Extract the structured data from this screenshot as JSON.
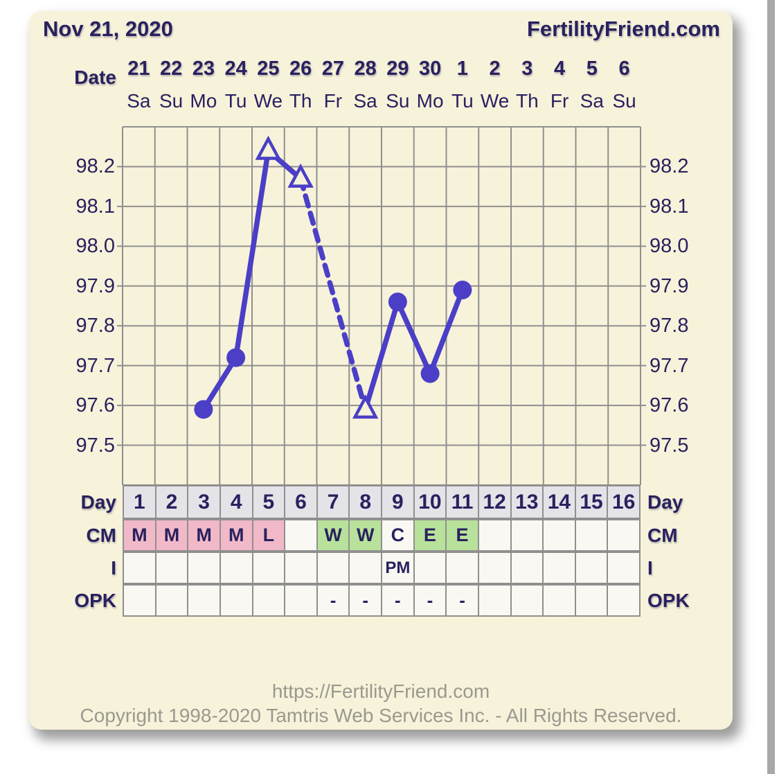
{
  "header": {
    "date_title": "Nov 21, 2020",
    "brand": "FertilityFriend.com"
  },
  "chart_data": {
    "type": "line",
    "x_axis": {
      "label": "Date",
      "dates": [
        "21",
        "22",
        "23",
        "24",
        "25",
        "26",
        "27",
        "28",
        "29",
        "30",
        "1",
        "2",
        "3",
        "4",
        "5",
        "6"
      ],
      "weekdays": [
        "Sa",
        "Su",
        "Mo",
        "Tu",
        "We",
        "Th",
        "Fr",
        "Sa",
        "Su",
        "Mo",
        "Tu",
        "We",
        "Th",
        "Fr",
        "Sa",
        "Su"
      ],
      "cycle_days": [
        1,
        2,
        3,
        4,
        5,
        6,
        7,
        8,
        9,
        10,
        11,
        12,
        13,
        14,
        15,
        16
      ]
    },
    "y_axis": {
      "tick_labels": [
        "98.2",
        "98.1",
        "98.0",
        "97.9",
        "97.8",
        "97.7",
        "97.6",
        "97.5"
      ],
      "lim": [
        97.4,
        98.3
      ],
      "gridline_step": 0.1,
      "labels_on_both_sides": true
    },
    "grid": true,
    "series": [
      {
        "name": "bbt-temperature",
        "color": "#4a3fc6",
        "points": [
          {
            "cycle_day": 3,
            "temp": 97.59,
            "marker": "circle"
          },
          {
            "cycle_day": 4,
            "temp": 97.72,
            "marker": "circle"
          },
          {
            "cycle_day": 5,
            "temp": 98.24,
            "marker": "triangle-open"
          },
          {
            "cycle_day": 6,
            "temp": 98.17,
            "marker": "triangle-open"
          },
          {
            "cycle_day": 8,
            "temp": 97.59,
            "marker": "triangle-open"
          },
          {
            "cycle_day": 9,
            "temp": 97.86,
            "marker": "circle"
          },
          {
            "cycle_day": 10,
            "temp": 97.68,
            "marker": "circle"
          },
          {
            "cycle_day": 11,
            "temp": 97.89,
            "marker": "circle"
          }
        ],
        "segment_rule": "dashed when cycle days are not consecutive (missing day 7)"
      }
    ]
  },
  "table": {
    "rows": [
      {
        "id": "day",
        "label": "Day",
        "cells": [
          {
            "text": "1",
            "bg": "day"
          },
          {
            "text": "2",
            "bg": "day"
          },
          {
            "text": "3",
            "bg": "day"
          },
          {
            "text": "4",
            "bg": "day"
          },
          {
            "text": "5",
            "bg": "day"
          },
          {
            "text": "6",
            "bg": "day"
          },
          {
            "text": "7",
            "bg": "day"
          },
          {
            "text": "8",
            "bg": "day"
          },
          {
            "text": "9",
            "bg": "day"
          },
          {
            "text": "10",
            "bg": "day"
          },
          {
            "text": "11",
            "bg": "day"
          },
          {
            "text": "12",
            "bg": "day"
          },
          {
            "text": "13",
            "bg": "day"
          },
          {
            "text": "14",
            "bg": "day"
          },
          {
            "text": "15",
            "bg": "day"
          },
          {
            "text": "16",
            "bg": "day"
          }
        ]
      },
      {
        "id": "cm",
        "label": "CM",
        "cells": [
          {
            "text": "M",
            "bg": "pink"
          },
          {
            "text": "M",
            "bg": "pink"
          },
          {
            "text": "M",
            "bg": "pink"
          },
          {
            "text": "M",
            "bg": "pink"
          },
          {
            "text": "L",
            "bg": "pink"
          },
          {
            "text": "",
            "bg": "plain"
          },
          {
            "text": "W",
            "bg": "green"
          },
          {
            "text": "W",
            "bg": "green"
          },
          {
            "text": "C",
            "bg": "plain"
          },
          {
            "text": "E",
            "bg": "green"
          },
          {
            "text": "E",
            "bg": "green"
          },
          {
            "text": "",
            "bg": "plain"
          },
          {
            "text": "",
            "bg": "plain"
          },
          {
            "text": "",
            "bg": "plain"
          },
          {
            "text": "",
            "bg": "plain"
          },
          {
            "text": "",
            "bg": "plain"
          }
        ]
      },
      {
        "id": "i",
        "label": "I",
        "cells": [
          {
            "text": "",
            "bg": "plain"
          },
          {
            "text": "",
            "bg": "plain"
          },
          {
            "text": "",
            "bg": "plain"
          },
          {
            "text": "",
            "bg": "plain"
          },
          {
            "text": "",
            "bg": "plain"
          },
          {
            "text": "",
            "bg": "plain"
          },
          {
            "text": "",
            "bg": "plain"
          },
          {
            "text": "",
            "bg": "plain"
          },
          {
            "text": "PM",
            "bg": "plain"
          },
          {
            "text": "",
            "bg": "plain"
          },
          {
            "text": "",
            "bg": "plain"
          },
          {
            "text": "",
            "bg": "plain"
          },
          {
            "text": "",
            "bg": "plain"
          },
          {
            "text": "",
            "bg": "plain"
          },
          {
            "text": "",
            "bg": "plain"
          },
          {
            "text": "",
            "bg": "plain"
          }
        ]
      },
      {
        "id": "opk",
        "label": "OPK",
        "cells": [
          {
            "text": "",
            "bg": "plain"
          },
          {
            "text": "",
            "bg": "plain"
          },
          {
            "text": "",
            "bg": "plain"
          },
          {
            "text": "",
            "bg": "plain"
          },
          {
            "text": "",
            "bg": "plain"
          },
          {
            "text": "",
            "bg": "plain"
          },
          {
            "text": "-",
            "bg": "plain"
          },
          {
            "text": "-",
            "bg": "plain"
          },
          {
            "text": "-",
            "bg": "plain"
          },
          {
            "text": "-",
            "bg": "plain"
          },
          {
            "text": "-",
            "bg": "plain"
          },
          {
            "text": "",
            "bg": "plain"
          },
          {
            "text": "",
            "bg": "plain"
          },
          {
            "text": "",
            "bg": "plain"
          },
          {
            "text": "",
            "bg": "plain"
          },
          {
            "text": "",
            "bg": "plain"
          }
        ]
      }
    ]
  },
  "footer": {
    "url": "https://FertilityFriend.com",
    "copyright": "Copyright 1998-2020 Tamtris Web Services Inc. - All Rights Reserved."
  },
  "colors": {
    "navy": "#29215f",
    "cream": "#f7f2da",
    "grid": "#8f8f8f",
    "line": "#4a3fc6",
    "pink": "#f1b9c8",
    "green": "#b8e29b",
    "plain": "#f9f8f3",
    "day": "#e4e3e8",
    "footer_text": "#9b998f"
  }
}
